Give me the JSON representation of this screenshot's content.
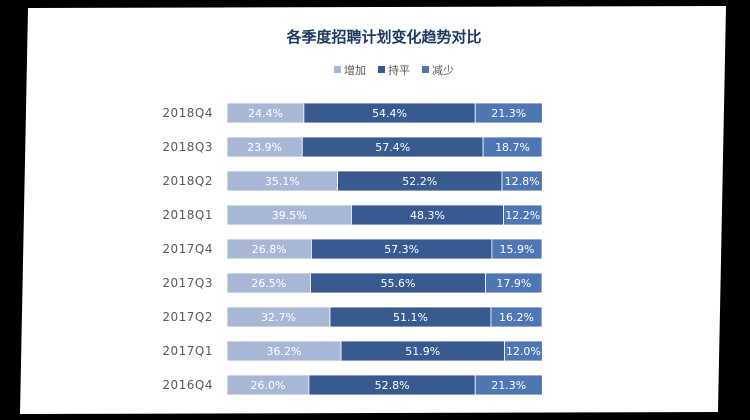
{
  "chart_data": {
    "type": "bar",
    "orientation": "horizontal",
    "stacked": "percent",
    "title": "各季度招聘计划变化趋势对比",
    "legend": {
      "placement": "top",
      "entries": [
        "增加",
        "持平",
        "减少"
      ]
    },
    "categories": [
      "2018Q4",
      "2018Q3",
      "2018Q2",
      "2018Q1",
      "2017Q4",
      "2017Q3",
      "2017Q2",
      "2017Q1",
      "2016Q4"
    ],
    "series": [
      {
        "name": "增加",
        "color": "#a9b7d6",
        "values": [
          24.4,
          23.9,
          35.1,
          39.5,
          26.8,
          26.5,
          32.7,
          36.2,
          26.0
        ],
        "labels": [
          "24.4%",
          "23.9%",
          "35.1%",
          "39.5%",
          "26.8%",
          "26.5%",
          "32.7%",
          "36.2%",
          "26.0%"
        ]
      },
      {
        "name": "持平",
        "color": "#385a90",
        "values": [
          54.4,
          57.4,
          52.2,
          48.3,
          57.3,
          55.6,
          51.1,
          51.9,
          52.8
        ],
        "labels": [
          "54.4%",
          "57.4%",
          "52.2%",
          "48.3%",
          "57.3%",
          "55.6%",
          "51.1%",
          "51.9%",
          "52.8%"
        ]
      },
      {
        "name": "减少",
        "color": "#4f76b4",
        "values": [
          21.3,
          18.7,
          12.8,
          12.2,
          15.9,
          17.9,
          16.2,
          12.0,
          21.3
        ],
        "labels": [
          "21.3%",
          "18.7%",
          "12.8%",
          "12.2%",
          "15.9%",
          "17.9%",
          "16.2%",
          "12.0%",
          "21.3%"
        ]
      }
    ],
    "xlim": [
      0,
      100
    ],
    "grid": false,
    "title_color": "#1f3864",
    "label_color": "#ffffff",
    "tick_color": "#595959"
  }
}
